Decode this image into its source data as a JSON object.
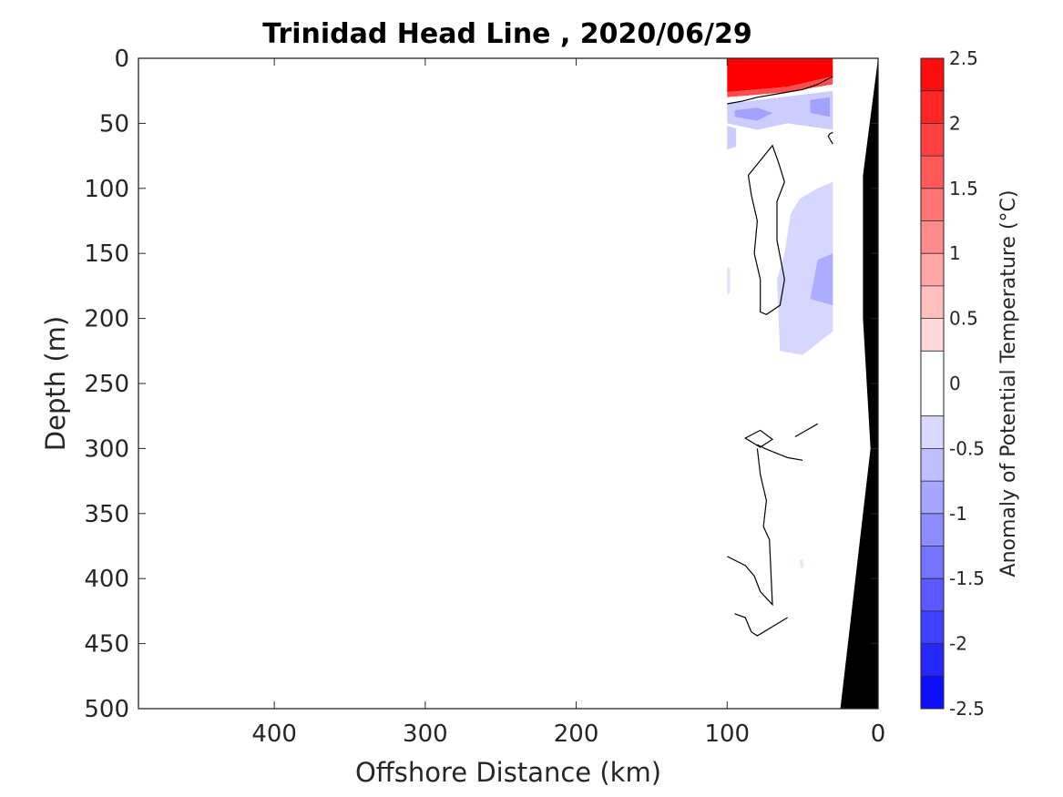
{
  "chart_data": {
    "type": "heatmap",
    "title": "Trinidad Head Line , 2020/06/29",
    "xlabel": "Offshore Distance (km)",
    "ylabel": "Depth (m)",
    "xlim": [
      490,
      0
    ],
    "ylim": [
      500,
      0
    ],
    "x_reversed": true,
    "y_reversed": true,
    "x_ticks": [
      400,
      300,
      200,
      100,
      0
    ],
    "y_ticks": [
      0,
      50,
      100,
      150,
      200,
      250,
      300,
      350,
      400,
      450,
      500
    ],
    "colorbar": {
      "label": "Anomaly of Potential Temperature (°C)",
      "min": -2.5,
      "max": 2.5,
      "ticks": [
        2.5,
        2,
        1.5,
        1,
        0.5,
        0,
        -0.5,
        -1,
        -1.5,
        -2,
        -2.5
      ],
      "levels": [
        -2.5,
        -2.25,
        -2,
        -1.75,
        -1.5,
        -1.25,
        -1,
        -0.75,
        -0.5,
        -0.25,
        0.25,
        0.5,
        0.75,
        1,
        1.25,
        1.5,
        1.75,
        2,
        2.25,
        2.5
      ],
      "negative_color": "#0000ff",
      "positive_color": "#ff0000",
      "neutral_color": "#ffffff"
    },
    "data_region": {
      "x_range": [
        100,
        30
      ],
      "y_range": [
        0,
        500
      ]
    },
    "regions": [
      {
        "value": 2.5,
        "polygon": [
          [
            100,
            0
          ],
          [
            30,
            0
          ],
          [
            30,
            14
          ],
          [
            60,
            22
          ],
          [
            80,
            24
          ],
          [
            100,
            26
          ]
        ]
      },
      {
        "value": 1.75,
        "polygon": [
          [
            100,
            26
          ],
          [
            80,
            24
          ],
          [
            60,
            22
          ],
          [
            30,
            14
          ],
          [
            30,
            20
          ],
          [
            60,
            26
          ],
          [
            100,
            30
          ]
        ]
      },
      {
        "value": -0.5,
        "polygon": [
          [
            100,
            35
          ],
          [
            30,
            25
          ],
          [
            30,
            55
          ],
          [
            60,
            50
          ],
          [
            80,
            55
          ],
          [
            100,
            50
          ]
        ]
      },
      {
        "value": -0.9,
        "polygon": [
          [
            95,
            40
          ],
          [
            80,
            38
          ],
          [
            70,
            42
          ],
          [
            80,
            48
          ],
          [
            95,
            45
          ]
        ]
      },
      {
        "value": -0.9,
        "polygon": [
          [
            45,
            32
          ],
          [
            32,
            30
          ],
          [
            32,
            45
          ],
          [
            45,
            42
          ]
        ]
      },
      {
        "value": -0.5,
        "polygon": [
          [
            100,
            52
          ],
          [
            94,
            54
          ],
          [
            94,
            68
          ],
          [
            100,
            70
          ]
        ]
      },
      {
        "value": -0.4,
        "polygon": [
          [
            40,
            100
          ],
          [
            30,
            95
          ],
          [
            30,
            210
          ],
          [
            50,
            228
          ],
          [
            65,
            225
          ],
          [
            67,
            170
          ],
          [
            62,
            150
          ],
          [
            58,
            120
          ],
          [
            52,
            108
          ]
        ]
      },
      {
        "value": -0.8,
        "polygon": [
          [
            40,
            155
          ],
          [
            30,
            150
          ],
          [
            30,
            190
          ],
          [
            45,
            185
          ]
        ]
      },
      {
        "value": -0.3,
        "polygon": [
          [
            100,
            160
          ],
          [
            98,
            162
          ],
          [
            98,
            180
          ],
          [
            100,
            182
          ]
        ]
      },
      {
        "value": 0.3,
        "polygon": [
          [
            52,
            386
          ],
          [
            50,
            385
          ],
          [
            49,
            390
          ],
          [
            51,
            393
          ]
        ]
      }
    ],
    "contours": [
      {
        "level": 0,
        "points": [
          [
            100,
            35
          ],
          [
            90,
            33
          ],
          [
            80,
            30
          ],
          [
            70,
            28
          ],
          [
            60,
            26
          ],
          [
            50,
            24
          ],
          [
            40,
            20
          ],
          [
            30,
            14
          ]
        ]
      },
      {
        "level": 0,
        "points": [
          [
            30,
            57
          ],
          [
            32,
            58
          ],
          [
            33,
            60
          ],
          [
            32,
            62
          ],
          [
            30,
            66
          ]
        ]
      },
      {
        "level": 0,
        "points": [
          [
            70,
            67
          ],
          [
            66,
            80
          ],
          [
            62,
            95
          ],
          [
            67,
            110
          ],
          [
            67,
            140
          ],
          [
            62,
            170
          ],
          [
            65,
            190
          ],
          [
            74,
            197
          ],
          [
            78,
            195
          ],
          [
            78,
            170
          ],
          [
            82,
            150
          ],
          [
            80,
            125
          ],
          [
            84,
            105
          ],
          [
            86,
            90
          ]
        ],
        "closed": true
      },
      {
        "level": 0,
        "points": [
          [
            88,
            292
          ],
          [
            78,
            286
          ],
          [
            70,
            293
          ],
          [
            78,
            299
          ]
        ],
        "closed": true
      },
      {
        "level": 0,
        "points": [
          [
            55,
            291
          ],
          [
            40,
            281
          ]
        ]
      },
      {
        "level": 0,
        "points": [
          [
            50,
            309
          ],
          [
            60,
            307
          ],
          [
            75,
            300
          ],
          [
            80,
            297
          ]
        ]
      },
      {
        "level": 0,
        "points": [
          [
            80,
            300
          ],
          [
            78,
            320
          ],
          [
            74,
            340
          ],
          [
            76,
            360
          ],
          [
            72,
            370
          ],
          [
            70,
            420
          ],
          [
            78,
            410
          ],
          [
            82,
            398
          ],
          [
            88,
            390
          ],
          [
            100,
            383
          ]
        ]
      },
      {
        "level": 0,
        "points": [
          [
            95,
            427
          ],
          [
            88,
            430
          ],
          [
            84,
            441
          ],
          [
            80,
            444
          ],
          [
            70,
            437
          ],
          [
            60,
            430
          ]
        ]
      }
    ],
    "bathymetry": {
      "fill": "#000000",
      "polygon": [
        [
          25,
          500
        ],
        [
          5,
          300
        ],
        [
          10,
          200
        ],
        [
          10,
          90
        ],
        [
          0,
          0
        ],
        [
          0,
          500
        ]
      ]
    }
  }
}
